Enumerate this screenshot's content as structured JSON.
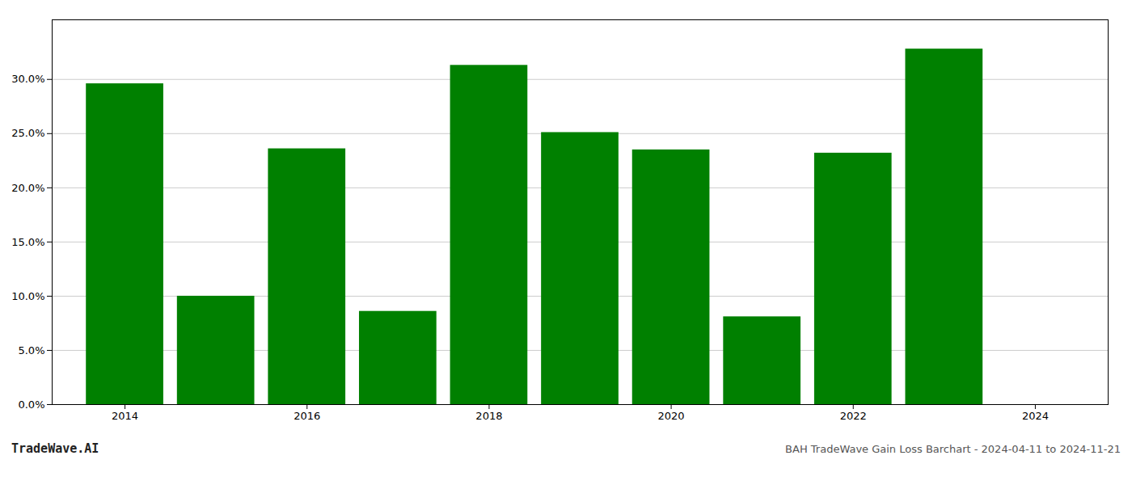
{
  "chart_data": {
    "type": "bar",
    "x": [
      2014,
      2015,
      2016,
      2017,
      2018,
      2019,
      2020,
      2021,
      2022,
      2023
    ],
    "values": [
      0.296,
      0.1,
      0.236,
      0.086,
      0.313,
      0.251,
      0.235,
      0.081,
      0.232,
      0.328
    ],
    "color": "#008000",
    "xlim": [
      2013.2,
      2024.8
    ],
    "xticks": [
      2014,
      2016,
      2018,
      2020,
      2022,
      2024
    ],
    "ylim": [
      0,
      0.355
    ],
    "yticks": [
      {
        "value": 0.0,
        "label": "0.0%"
      },
      {
        "value": 0.05,
        "label": "5.0%"
      },
      {
        "value": 0.1,
        "label": "10.0%"
      },
      {
        "value": 0.15,
        "label": "15.0%"
      },
      {
        "value": 0.2,
        "label": "20.0%"
      },
      {
        "value": 0.25,
        "label": "25.0%"
      },
      {
        "value": 0.3,
        "label": "30.0%"
      }
    ],
    "grid": true,
    "annotations": [
      "TradeWave.AI",
      "BAH TradeWave Gain Loss Barchart - 2024-04-11 to 2024-11-21"
    ]
  }
}
